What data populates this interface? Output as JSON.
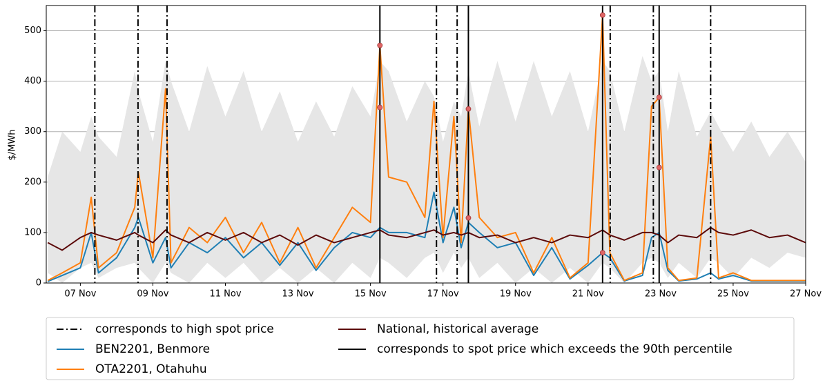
{
  "chart_data": {
    "type": "line",
    "ylabel": "$/MWh",
    "xlim": [
      6.06,
      27.0
    ],
    "xticks": [
      {
        "value": 7,
        "label": "07 Nov"
      },
      {
        "value": 9,
        "label": "09 Nov"
      },
      {
        "value": 11,
        "label": "11 Nov"
      },
      {
        "value": 13,
        "label": "13 Nov"
      },
      {
        "value": 15,
        "label": "15 Nov"
      },
      {
        "value": 17,
        "label": "17 Nov"
      },
      {
        "value": 19,
        "label": "19 Nov"
      },
      {
        "value": 21,
        "label": "21 Nov"
      },
      {
        "value": 23,
        "label": "23 Nov"
      },
      {
        "value": 25,
        "label": "25 Nov"
      },
      {
        "value": 27,
        "label": "27 Nov"
      }
    ],
    "ylim": [
      0,
      550
    ],
    "yticks": [
      0,
      100,
      200,
      300,
      400,
      500
    ],
    "grid": true,
    "x": [
      6.1,
      6.5,
      7.0,
      7.3,
      7.5,
      8.0,
      8.5,
      8.6,
      9.0,
      9.35,
      9.5,
      10.0,
      10.5,
      11.0,
      11.5,
      12.0,
      12.5,
      13.0,
      13.5,
      14.0,
      14.5,
      15.0,
      15.26,
      15.5,
      16.0,
      16.5,
      16.75,
      17.0,
      17.3,
      17.5,
      17.7,
      18.0,
      18.5,
      19.0,
      19.5,
      20.0,
      20.5,
      21.0,
      21.4,
      21.6,
      22.0,
      22.5,
      22.75,
      22.96,
      23.2,
      23.5,
      24.0,
      24.38,
      24.6,
      25.0,
      25.5,
      26.0,
      26.5,
      27.0
    ],
    "band": {
      "color": "#e6e6e6",
      "upper": [
        210,
        300,
        260,
        330,
        290,
        250,
        420,
        380,
        280,
        440,
        400,
        300,
        430,
        330,
        420,
        300,
        380,
        280,
        360,
        290,
        390,
        330,
        440,
        420,
        320,
        400,
        370,
        280,
        360,
        330,
        420,
        310,
        440,
        320,
        440,
        330,
        420,
        300,
        440,
        420,
        300,
        450,
        400,
        420,
        300,
        420,
        290,
        340,
        310,
        260,
        320,
        250,
        300,
        240
      ],
      "lower": [
        20,
        0,
        30,
        40,
        10,
        30,
        40,
        30,
        0,
        40,
        20,
        0,
        40,
        10,
        40,
        0,
        30,
        0,
        30,
        0,
        40,
        10,
        50,
        40,
        10,
        50,
        60,
        20,
        60,
        30,
        50,
        10,
        40,
        0,
        30,
        0,
        30,
        0,
        40,
        30,
        0,
        40,
        50,
        40,
        10,
        40,
        10,
        50,
        40,
        10,
        50,
        30,
        60,
        50
      ]
    },
    "series": [
      {
        "name": "BEN2201, Benmore",
        "color": "#1f7fb4",
        "values": [
          3,
          15,
          30,
          100,
          20,
          50,
          110,
          130,
          40,
          90,
          30,
          80,
          60,
          90,
          50,
          80,
          35,
          80,
          25,
          70,
          100,
          90,
          110,
          100,
          100,
          90,
          180,
          80,
          150,
          70,
          120,
          100,
          70,
          80,
          15,
          70,
          8,
          35,
          60,
          50,
          4,
          15,
          90,
          100,
          25,
          4,
          8,
          20,
          8,
          15,
          4,
          4,
          4,
          4
        ]
      },
      {
        "name": "OTA2201, Otahuhu",
        "color": "#ff7f0e",
        "values": [
          5,
          20,
          40,
          170,
          30,
          60,
          150,
          220,
          50,
          385,
          40,
          110,
          80,
          130,
          60,
          120,
          40,
          110,
          30,
          90,
          150,
          120,
          471,
          210,
          200,
          130,
          360,
          90,
          330,
          80,
          345,
          130,
          90,
          100,
          20,
          90,
          10,
          40,
          531,
          60,
          5,
          20,
          350,
          368,
          30,
          5,
          10,
          290,
          10,
          20,
          5,
          5,
          5,
          5
        ]
      },
      {
        "name": "National, historical average",
        "color": "#5c0a0a",
        "values": [
          80,
          65,
          90,
          100,
          95,
          85,
          100,
          95,
          80,
          105,
          95,
          80,
          100,
          85,
          100,
          80,
          95,
          75,
          95,
          80,
          90,
          100,
          105,
          95,
          90,
          100,
          105,
          95,
          100,
          95,
          100,
          90,
          95,
          80,
          90,
          80,
          95,
          90,
          105,
          95,
          85,
          100,
          100,
          95,
          80,
          95,
          90,
          110,
          100,
          95,
          105,
          90,
          95,
          80
        ]
      }
    ],
    "vlines": [
      {
        "name": "corresponds to high spot price",
        "style": "dashdot",
        "color": "#000000",
        "x": [
          7.4,
          8.59,
          9.39,
          16.82,
          17.39,
          21.61,
          22.8,
          24.38
        ]
      },
      {
        "name": "corresponds to spot price which exceeds the 90th percentile",
        "style": "solid",
        "color": "#000000",
        "x": [
          15.26,
          17.7,
          21.4,
          22.96
        ]
      }
    ],
    "points": {
      "color": "#e06666",
      "x": [
        15.26,
        15.26,
        17.7,
        17.7,
        21.4,
        21.4,
        22.96,
        22.96
      ],
      "y": [
        471,
        348,
        345,
        129,
        531,
        60,
        368,
        229
      ]
    }
  }
}
